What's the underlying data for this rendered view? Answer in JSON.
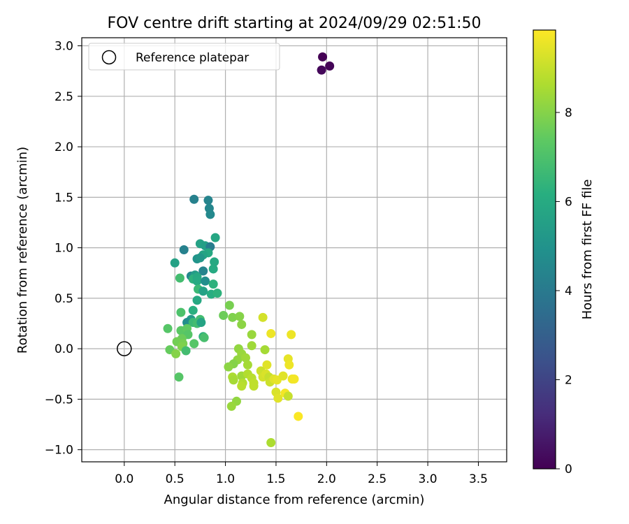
{
  "chart_data": {
    "type": "scatter",
    "title": "FOV centre drift starting at 2024/09/29 02:51:50",
    "xlabel": "Angular distance from reference (arcmin)",
    "ylabel": "Rotation from reference (arcmin)",
    "xlim": [
      -0.42,
      3.78
    ],
    "ylim": [
      -1.12,
      3.08
    ],
    "xticks": [
      "0.0",
      "0.5",
      "1.0",
      "1.5",
      "2.0",
      "2.5",
      "3.0",
      "3.5"
    ],
    "yticks": [
      "−1.0",
      "−0.5",
      "0.0",
      "0.5",
      "1.0",
      "1.5",
      "2.0",
      "2.5",
      "3.0"
    ],
    "grid": true,
    "legend": {
      "placement": "upper-left",
      "entries": [
        {
          "label": "Reference platepar",
          "marker": "hollow-circle"
        }
      ]
    },
    "reference_point": {
      "x": 0.0,
      "y": 0.0
    },
    "colormap": "viridis",
    "colorbar": {
      "label": "Hours from first FF file",
      "range": [
        0,
        9.85
      ],
      "ticks": [
        "0",
        "2",
        "4",
        "6",
        "8"
      ]
    },
    "points": [
      {
        "x": 1.96,
        "y": 2.89,
        "c": 0.0
      },
      {
        "x": 2.03,
        "y": 2.8,
        "c": 0.1
      },
      {
        "x": 1.95,
        "y": 2.76,
        "c": 0.2
      },
      {
        "x": 0.69,
        "y": 1.48,
        "c": 4.3
      },
      {
        "x": 0.83,
        "y": 1.47,
        "c": 4.4
      },
      {
        "x": 0.84,
        "y": 1.39,
        "c": 4.5
      },
      {
        "x": 0.85,
        "y": 1.33,
        "c": 4.6
      },
      {
        "x": 0.9,
        "y": 1.1,
        "c": 5.8
      },
      {
        "x": 0.75,
        "y": 1.04,
        "c": 5.6
      },
      {
        "x": 0.8,
        "y": 1.02,
        "c": 5.5
      },
      {
        "x": 0.85,
        "y": 1.01,
        "c": 4.1
      },
      {
        "x": 0.59,
        "y": 0.98,
        "c": 4.3
      },
      {
        "x": 0.83,
        "y": 0.95,
        "c": 5.9
      },
      {
        "x": 0.78,
        "y": 0.93,
        "c": 5.7
      },
      {
        "x": 0.72,
        "y": 0.89,
        "c": 5.0
      },
      {
        "x": 0.75,
        "y": 0.9,
        "c": 5.2
      },
      {
        "x": 0.89,
        "y": 0.86,
        "c": 5.9
      },
      {
        "x": 0.5,
        "y": 0.85,
        "c": 5.6
      },
      {
        "x": 0.88,
        "y": 0.79,
        "c": 6.0
      },
      {
        "x": 0.78,
        "y": 0.77,
        "c": 4.4
      },
      {
        "x": 0.66,
        "y": 0.72,
        "c": 4.6
      },
      {
        "x": 0.7,
        "y": 0.73,
        "c": 5.4
      },
      {
        "x": 0.68,
        "y": 0.69,
        "c": 6.3
      },
      {
        "x": 0.72,
        "y": 0.71,
        "c": 5.9
      },
      {
        "x": 0.55,
        "y": 0.7,
        "c": 6.8
      },
      {
        "x": 0.72,
        "y": 0.67,
        "c": 6.0
      },
      {
        "x": 0.8,
        "y": 0.67,
        "c": 4.8
      },
      {
        "x": 0.88,
        "y": 0.64,
        "c": 6.3
      },
      {
        "x": 0.73,
        "y": 0.59,
        "c": 6.6
      },
      {
        "x": 0.78,
        "y": 0.57,
        "c": 5.6
      },
      {
        "x": 0.86,
        "y": 0.54,
        "c": 6.1
      },
      {
        "x": 0.92,
        "y": 0.55,
        "c": 6.3
      },
      {
        "x": 0.72,
        "y": 0.48,
        "c": 5.9
      },
      {
        "x": 0.56,
        "y": 0.36,
        "c": 7.0
      },
      {
        "x": 0.68,
        "y": 0.38,
        "c": 6.2
      },
      {
        "x": 0.75,
        "y": 0.29,
        "c": 6.8
      },
      {
        "x": 0.66,
        "y": 0.29,
        "c": 5.3
      },
      {
        "x": 0.62,
        "y": 0.26,
        "c": 4.8
      },
      {
        "x": 0.68,
        "y": 0.26,
        "c": 6.6
      },
      {
        "x": 0.72,
        "y": 0.25,
        "c": 6.8
      },
      {
        "x": 0.76,
        "y": 0.26,
        "c": 5.7
      },
      {
        "x": 0.43,
        "y": 0.2,
        "c": 7.2
      },
      {
        "x": 0.56,
        "y": 0.18,
        "c": 7.3
      },
      {
        "x": 0.62,
        "y": 0.2,
        "c": 7.4
      },
      {
        "x": 0.63,
        "y": 0.14,
        "c": 7.2
      },
      {
        "x": 0.78,
        "y": 0.12,
        "c": 6.3
      },
      {
        "x": 0.79,
        "y": 0.11,
        "c": 6.9
      },
      {
        "x": 0.57,
        "y": 0.1,
        "c": 7.6
      },
      {
        "x": 0.52,
        "y": 0.07,
        "c": 7.7
      },
      {
        "x": 0.58,
        "y": 0.05,
        "c": 7.8
      },
      {
        "x": 0.69,
        "y": 0.05,
        "c": 7.2
      },
      {
        "x": 0.57,
        "y": 0.02,
        "c": 7.9
      },
      {
        "x": 0.45,
        "y": -0.01,
        "c": 7.5
      },
      {
        "x": 0.51,
        "y": -0.05,
        "c": 8.0
      },
      {
        "x": 0.61,
        "y": -0.02,
        "c": 6.8
      },
      {
        "x": 0.54,
        "y": -0.28,
        "c": 7.2
      },
      {
        "x": 0.98,
        "y": 0.33,
        "c": 7.6
      },
      {
        "x": 1.04,
        "y": 0.43,
        "c": 7.8
      },
      {
        "x": 1.07,
        "y": 0.31,
        "c": 7.9
      },
      {
        "x": 1.14,
        "y": 0.32,
        "c": 8.0
      },
      {
        "x": 1.16,
        "y": 0.24,
        "c": 8.1
      },
      {
        "x": 1.26,
        "y": 0.14,
        "c": 8.3
      },
      {
        "x": 1.37,
        "y": 0.31,
        "c": 9.2
      },
      {
        "x": 1.45,
        "y": 0.15,
        "c": 9.6
      },
      {
        "x": 1.65,
        "y": 0.14,
        "c": 9.6
      },
      {
        "x": 1.26,
        "y": 0.03,
        "c": 8.4
      },
      {
        "x": 1.13,
        "y": 0.0,
        "c": 8.2
      },
      {
        "x": 1.16,
        "y": -0.05,
        "c": 8.3
      },
      {
        "x": 1.39,
        "y": -0.01,
        "c": 8.5
      },
      {
        "x": 1.12,
        "y": -0.11,
        "c": 8.2
      },
      {
        "x": 1.2,
        "y": -0.09,
        "c": 8.4
      },
      {
        "x": 1.22,
        "y": -0.16,
        "c": 8.5
      },
      {
        "x": 1.08,
        "y": -0.15,
        "c": 8.0
      },
      {
        "x": 1.03,
        "y": -0.18,
        "c": 8.1
      },
      {
        "x": 1.62,
        "y": -0.1,
        "c": 9.5
      },
      {
        "x": 1.63,
        "y": -0.16,
        "c": 9.6
      },
      {
        "x": 1.41,
        "y": -0.16,
        "c": 9.4
      },
      {
        "x": 1.16,
        "y": -0.27,
        "c": 8.4
      },
      {
        "x": 1.07,
        "y": -0.28,
        "c": 8.6
      },
      {
        "x": 1.08,
        "y": -0.31,
        "c": 8.5
      },
      {
        "x": 1.22,
        "y": -0.25,
        "c": 8.7
      },
      {
        "x": 1.26,
        "y": -0.29,
        "c": 8.8
      },
      {
        "x": 1.28,
        "y": -0.34,
        "c": 8.9
      },
      {
        "x": 1.17,
        "y": -0.34,
        "c": 8.7
      },
      {
        "x": 1.16,
        "y": -0.37,
        "c": 8.8
      },
      {
        "x": 1.35,
        "y": -0.22,
        "c": 9.1
      },
      {
        "x": 1.37,
        "y": -0.28,
        "c": 9.2
      },
      {
        "x": 1.4,
        "y": -0.25,
        "c": 9.3
      },
      {
        "x": 1.43,
        "y": -0.28,
        "c": 9.0
      },
      {
        "x": 1.44,
        "y": -0.33,
        "c": 9.1
      },
      {
        "x": 1.48,
        "y": -0.3,
        "c": 9.4
      },
      {
        "x": 1.51,
        "y": -0.31,
        "c": 9.5
      },
      {
        "x": 1.57,
        "y": -0.27,
        "c": 9.4
      },
      {
        "x": 1.66,
        "y": -0.3,
        "c": 9.6
      },
      {
        "x": 1.68,
        "y": -0.3,
        "c": 9.7
      },
      {
        "x": 1.28,
        "y": -0.37,
        "c": 8.9
      },
      {
        "x": 1.5,
        "y": -0.43,
        "c": 9.3
      },
      {
        "x": 1.52,
        "y": -0.49,
        "c": 9.4
      },
      {
        "x": 1.59,
        "y": -0.44,
        "c": 9.7
      },
      {
        "x": 1.62,
        "y": -0.47,
        "c": 9.0
      },
      {
        "x": 1.11,
        "y": -0.52,
        "c": 8.2
      },
      {
        "x": 1.06,
        "y": -0.57,
        "c": 8.3
      },
      {
        "x": 1.72,
        "y": -0.67,
        "c": 9.8
      },
      {
        "x": 1.45,
        "y": -0.93,
        "c": 8.6
      }
    ]
  }
}
